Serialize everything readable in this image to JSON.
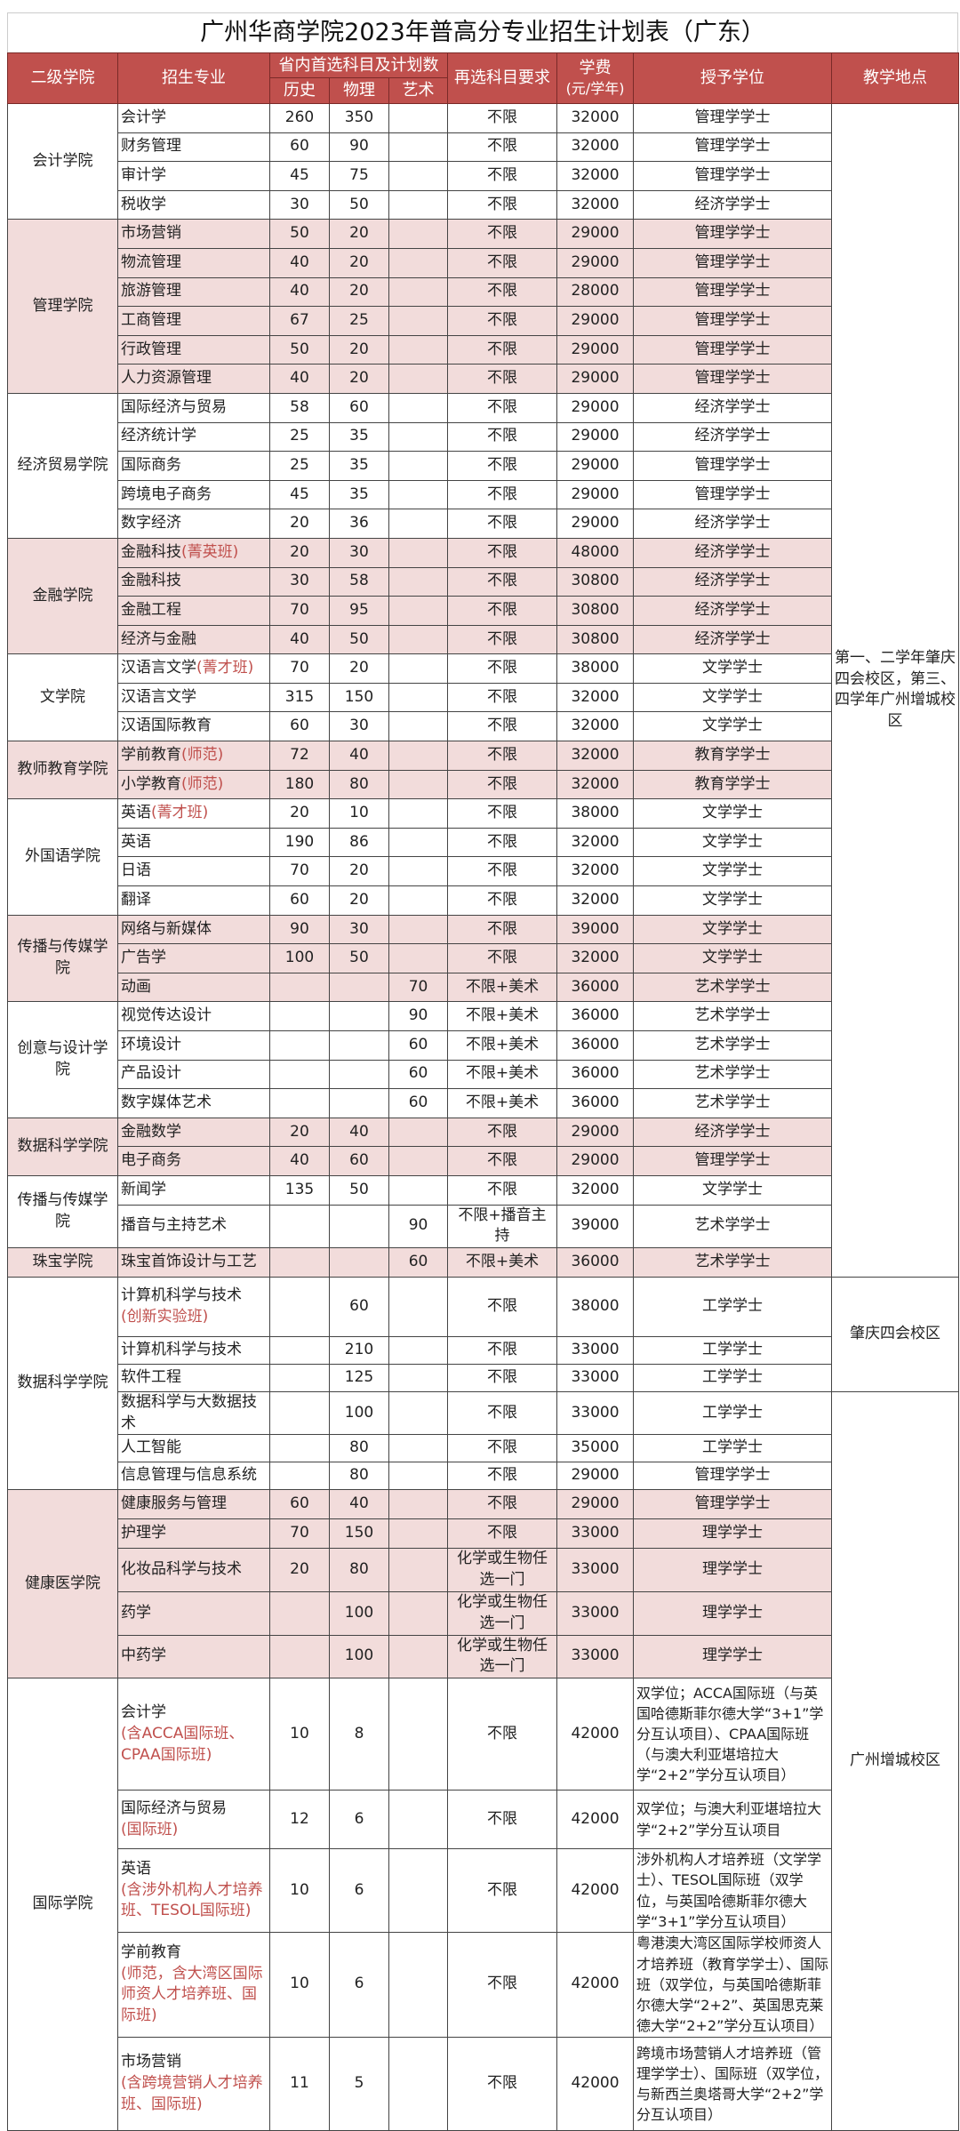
{
  "title": "广州华商学院2023年普高分专业招生计划表（广东）",
  "colors": {
    "header": "#c0504d",
    "shade": "#f2dcdb",
    "note": "#c0504d"
  },
  "headers": {
    "college": "二级学院",
    "major": "招生专业",
    "plan_group": "省内首选科目及计划数",
    "history": "历史",
    "physics": "物理",
    "art": "艺术",
    "requirement": "再选科目要求",
    "fee": "学费",
    "fee_unit": "(元/学年)",
    "degree": "授予学位",
    "location": "教学地点"
  },
  "locations": [
    {
      "text": "第一、二学年肇庆四会校区，第三、四学年广州增城校区",
      "rows": 40
    },
    {
      "text": "肇庆四会校区",
      "rows": 3
    },
    {
      "text": "广州增城校区",
      "rows": 16
    }
  ],
  "colleges": [
    {
      "name": "会计学院",
      "shaded": false,
      "rows": [
        {
          "major": "会计学",
          "note": "",
          "history": "260",
          "physics": "350",
          "art": "",
          "req": "不限",
          "fee": "32000",
          "degree": "管理学学士"
        },
        {
          "major": "财务管理",
          "note": "",
          "history": "60",
          "physics": "90",
          "art": "",
          "req": "不限",
          "fee": "32000",
          "degree": "管理学学士"
        },
        {
          "major": "审计学",
          "note": "",
          "history": "45",
          "physics": "75",
          "art": "",
          "req": "不限",
          "fee": "32000",
          "degree": "管理学学士"
        },
        {
          "major": "税收学",
          "note": "",
          "history": "30",
          "physics": "50",
          "art": "",
          "req": "不限",
          "fee": "32000",
          "degree": "经济学学士"
        }
      ]
    },
    {
      "name": "管理学院",
      "shaded": true,
      "rows": [
        {
          "major": "市场营销",
          "note": "",
          "history": "50",
          "physics": "20",
          "art": "",
          "req": "不限",
          "fee": "29000",
          "degree": "管理学学士"
        },
        {
          "major": "物流管理",
          "note": "",
          "history": "40",
          "physics": "20",
          "art": "",
          "req": "不限",
          "fee": "29000",
          "degree": "管理学学士"
        },
        {
          "major": "旅游管理",
          "note": "",
          "history": "40",
          "physics": "20",
          "art": "",
          "req": "不限",
          "fee": "28000",
          "degree": "管理学学士"
        },
        {
          "major": "工商管理",
          "note": "",
          "history": "67",
          "physics": "25",
          "art": "",
          "req": "不限",
          "fee": "29000",
          "degree": "管理学学士"
        },
        {
          "major": "行政管理",
          "note": "",
          "history": "50",
          "physics": "20",
          "art": "",
          "req": "不限",
          "fee": "29000",
          "degree": "管理学学士"
        },
        {
          "major": "人力资源管理",
          "note": "",
          "history": "40",
          "physics": "20",
          "art": "",
          "req": "不限",
          "fee": "29000",
          "degree": "管理学学士"
        }
      ]
    },
    {
      "name": "经济贸易学院",
      "shaded": false,
      "rows": [
        {
          "major": "国际经济与贸易",
          "note": "",
          "history": "58",
          "physics": "60",
          "art": "",
          "req": "不限",
          "fee": "29000",
          "degree": "经济学学士"
        },
        {
          "major": "经济统计学",
          "note": "",
          "history": "25",
          "physics": "35",
          "art": "",
          "req": "不限",
          "fee": "29000",
          "degree": "经济学学士"
        },
        {
          "major": "国际商务",
          "note": "",
          "history": "25",
          "physics": "35",
          "art": "",
          "req": "不限",
          "fee": "29000",
          "degree": "管理学学士"
        },
        {
          "major": "跨境电子商务",
          "note": "",
          "history": "45",
          "physics": "35",
          "art": "",
          "req": "不限",
          "fee": "29000",
          "degree": "管理学学士"
        },
        {
          "major": "数字经济",
          "note": "",
          "history": "20",
          "physics": "36",
          "art": "",
          "req": "不限",
          "fee": "29000",
          "degree": "经济学学士"
        }
      ]
    },
    {
      "name": "金融学院",
      "shaded": true,
      "rows": [
        {
          "major": "金融科技",
          "note": "(菁英班)",
          "history": "20",
          "physics": "30",
          "art": "",
          "req": "不限",
          "fee": "48000",
          "degree": "经济学学士"
        },
        {
          "major": "金融科技",
          "note": "",
          "history": "30",
          "physics": "58",
          "art": "",
          "req": "不限",
          "fee": "30800",
          "degree": "经济学学士"
        },
        {
          "major": "金融工程",
          "note": "",
          "history": "70",
          "physics": "95",
          "art": "",
          "req": "不限",
          "fee": "30800",
          "degree": "经济学学士"
        },
        {
          "major": "经济与金融",
          "note": "",
          "history": "40",
          "physics": "50",
          "art": "",
          "req": "不限",
          "fee": "30800",
          "degree": "经济学学士"
        }
      ]
    },
    {
      "name": "文学院",
      "shaded": false,
      "rows": [
        {
          "major": "汉语言文学",
          "note": "(菁才班)",
          "history": "70",
          "physics": "20",
          "art": "",
          "req": "不限",
          "fee": "38000",
          "degree": "文学学士"
        },
        {
          "major": "汉语言文学",
          "note": "",
          "history": "315",
          "physics": "150",
          "art": "",
          "req": "不限",
          "fee": "32000",
          "degree": "文学学士"
        },
        {
          "major": "汉语国际教育",
          "note": "",
          "history": "60",
          "physics": "30",
          "art": "",
          "req": "不限",
          "fee": "32000",
          "degree": "文学学士"
        }
      ]
    },
    {
      "name": "教师教育学院",
      "shaded": true,
      "rows": [
        {
          "major": "学前教育",
          "note": "(师范)",
          "history": "72",
          "physics": "40",
          "art": "",
          "req": "不限",
          "fee": "32000",
          "degree": "教育学学士"
        },
        {
          "major": "小学教育",
          "note": "(师范)",
          "history": "180",
          "physics": "80",
          "art": "",
          "req": "不限",
          "fee": "32000",
          "degree": "教育学学士"
        }
      ]
    },
    {
      "name": "外国语学院",
      "shaded": false,
      "rows": [
        {
          "major": "英语",
          "note": "(菁才班)",
          "history": "20",
          "physics": "10",
          "art": "",
          "req": "不限",
          "fee": "38000",
          "degree": "文学学士"
        },
        {
          "major": "英语",
          "note": "",
          "history": "190",
          "physics": "86",
          "art": "",
          "req": "不限",
          "fee": "32000",
          "degree": "文学学士"
        },
        {
          "major": "日语",
          "note": "",
          "history": "70",
          "physics": "20",
          "art": "",
          "req": "不限",
          "fee": "32000",
          "degree": "文学学士"
        },
        {
          "major": "翻译",
          "note": "",
          "history": "60",
          "physics": "20",
          "art": "",
          "req": "不限",
          "fee": "32000",
          "degree": "文学学士"
        }
      ]
    },
    {
      "name": "传播与传媒学院",
      "shaded": true,
      "rows": [
        {
          "major": "网络与新媒体",
          "note": "",
          "history": "90",
          "physics": "30",
          "art": "",
          "req": "不限",
          "fee": "39000",
          "degree": "文学学士"
        },
        {
          "major": "广告学",
          "note": "",
          "history": "100",
          "physics": "50",
          "art": "",
          "req": "不限",
          "fee": "32000",
          "degree": "文学学士"
        },
        {
          "major": "动画",
          "note": "",
          "history": "",
          "physics": "",
          "art": "70",
          "req": "不限+美术",
          "fee": "36000",
          "degree": "艺术学学士"
        }
      ]
    },
    {
      "name": "创意与设计学院",
      "shaded": false,
      "rows": [
        {
          "major": "视觉传达设计",
          "note": "",
          "history": "",
          "physics": "",
          "art": "90",
          "req": "不限+美术",
          "fee": "36000",
          "degree": "艺术学学士"
        },
        {
          "major": "环境设计",
          "note": "",
          "history": "",
          "physics": "",
          "art": "60",
          "req": "不限+美术",
          "fee": "36000",
          "degree": "艺术学学士"
        },
        {
          "major": "产品设计",
          "note": "",
          "history": "",
          "physics": "",
          "art": "60",
          "req": "不限+美术",
          "fee": "36000",
          "degree": "艺术学学士"
        },
        {
          "major": "数字媒体艺术",
          "note": "",
          "history": "",
          "physics": "",
          "art": "60",
          "req": "不限+美术",
          "fee": "36000",
          "degree": "艺术学学士"
        }
      ]
    },
    {
      "name": "数据科学学院",
      "shaded": true,
      "rows": [
        {
          "major": "金融数学",
          "note": "",
          "history": "20",
          "physics": "40",
          "art": "",
          "req": "不限",
          "fee": "29000",
          "degree": "经济学学士"
        },
        {
          "major": "电子商务",
          "note": "",
          "history": "40",
          "physics": "60",
          "art": "",
          "req": "不限",
          "fee": "29000",
          "degree": "管理学学士"
        }
      ]
    },
    {
      "name": "传播与传媒学院",
      "shaded": false,
      "rows": [
        {
          "major": "新闻学",
          "note": "",
          "history": "135",
          "physics": "50",
          "art": "",
          "req": "不限",
          "fee": "32000",
          "degree": "文学学士"
        },
        {
          "major": "播音与主持艺术",
          "note": "",
          "history": "",
          "physics": "",
          "art": "90",
          "req": "不限+播音主持",
          "fee": "39000",
          "degree": "艺术学学士"
        }
      ]
    },
    {
      "name": "珠宝学院",
      "shaded": true,
      "rows": [
        {
          "major": "珠宝首饰设计与工艺",
          "note": "",
          "history": "",
          "physics": "",
          "art": "60",
          "req": "不限+美术",
          "fee": "36000",
          "degree": "艺术学学士"
        }
      ]
    },
    {
      "name": "数据科学学院",
      "shaded": false,
      "rows": [
        {
          "major": "计算机科学与技术",
          "note": "(创新实验班)",
          "note_break": true,
          "history": "",
          "physics": "60",
          "art": "",
          "req": "不限",
          "fee": "38000",
          "degree": "工学学士"
        },
        {
          "major": "计算机科学与技术",
          "note": "",
          "history": "",
          "physics": "210",
          "art": "",
          "req": "不限",
          "fee": "33000",
          "degree": "工学学士"
        },
        {
          "major": "软件工程",
          "note": "",
          "history": "",
          "physics": "125",
          "art": "",
          "req": "不限",
          "fee": "33000",
          "degree": "工学学士"
        },
        {
          "major": "数据科学与大数据技术",
          "note": "",
          "history": "",
          "physics": "100",
          "art": "",
          "req": "不限",
          "fee": "33000",
          "degree": "工学学士"
        },
        {
          "major": "人工智能",
          "note": "",
          "history": "",
          "physics": "80",
          "art": "",
          "req": "不限",
          "fee": "35000",
          "degree": "工学学士"
        },
        {
          "major": "信息管理与信息系统",
          "note": "",
          "history": "",
          "physics": "80",
          "art": "",
          "req": "不限",
          "fee": "29000",
          "degree": "管理学学士"
        }
      ]
    },
    {
      "name": "健康医学院",
      "shaded": true,
      "rows": [
        {
          "major": "健康服务与管理",
          "note": "",
          "history": "60",
          "physics": "40",
          "art": "",
          "req": "不限",
          "fee": "29000",
          "degree": "管理学学士"
        },
        {
          "major": "护理学",
          "note": "",
          "history": "70",
          "physics": "150",
          "art": "",
          "req": "不限",
          "fee": "33000",
          "degree": "理学学士"
        },
        {
          "major": "化妆品科学与技术",
          "note": "",
          "history": "20",
          "physics": "80",
          "art": "",
          "req": "化学或生物任选一门",
          "fee": "33000",
          "degree": "理学学士"
        },
        {
          "major": "药学",
          "note": "",
          "history": "",
          "physics": "100",
          "art": "",
          "req": "化学或生物任选一门",
          "fee": "33000",
          "degree": "理学学士"
        },
        {
          "major": "中药学",
          "note": "",
          "history": "",
          "physics": "100",
          "art": "",
          "req": "化学或生物任选一门",
          "fee": "33000",
          "degree": "理学学士"
        }
      ]
    },
    {
      "name": "国际学院",
      "shaded": false,
      "long_degree": true,
      "rows": [
        {
          "major": "会计学",
          "note": "(含ACCA国际班、CPAA国际班)",
          "note_break": true,
          "history": "10",
          "physics": "8",
          "art": "",
          "req": "不限",
          "fee": "42000",
          "degree": "双学位；ACCA国际班（与英国哈德斯菲尔德大学“3+1”学分互认项目）、CPAA国际班（与澳大利亚堪培拉大学“2+2”学分互认项目）"
        },
        {
          "major": "国际经济与贸易",
          "note": "(国际班)",
          "note_break": true,
          "history": "12",
          "physics": "6",
          "art": "",
          "req": "不限",
          "fee": "42000",
          "degree": "双学位；与澳大利亚堪培拉大学“2+2”学分互认项目"
        },
        {
          "major": "英语",
          "note": "(含涉外机构人才培养班、TESOL国际班)",
          "note_break": true,
          "history": "10",
          "physics": "6",
          "art": "",
          "req": "不限",
          "fee": "42000",
          "degree": "涉外机构人才培养班（文学学士）、TESOL国际班（双学位，与英国哈德斯菲尔德大学“3+1”学分互认项目）"
        },
        {
          "major": "学前教育",
          "note": "(师范，含大湾区国际师资人才培养班、国际班)",
          "note_break": true,
          "history": "10",
          "physics": "6",
          "art": "",
          "req": "不限",
          "fee": "42000",
          "degree": "粤港澳大湾区国际学校师资人才培养班（教育学学士）、国际班（双学位，与英国哈德斯菲尔德大学“2+2”、英国思克莱德大学“2+2”学分互认项目）"
        },
        {
          "major": "市场营销",
          "note": "(含跨境营销人才培养班、国际班)",
          "note_break": true,
          "history": "11",
          "physics": "5",
          "art": "",
          "req": "不限",
          "fee": "42000",
          "degree": "跨境市场营销人才培养班（管理学学士）、国际班（双学位，与新西兰奥塔哥大学“2+2”学分互认项目）"
        }
      ]
    }
  ]
}
